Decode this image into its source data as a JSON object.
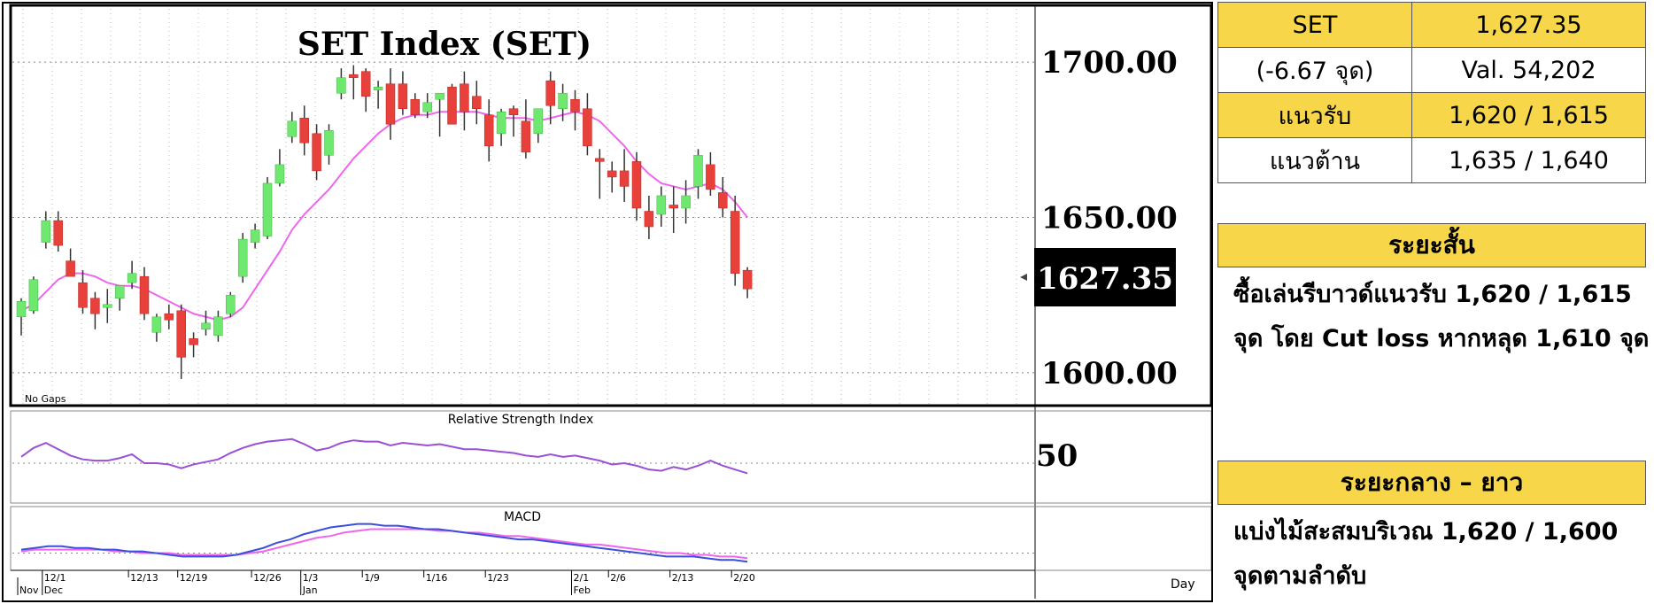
{
  "chart_data": {
    "type": "candlestick",
    "title": "SET Index (SET)",
    "price_axis": {
      "ticks": [
        "1700.00",
        "1650.00",
        "1600.00"
      ],
      "tick_values": [
        1700,
        1650,
        1600
      ],
      "range": [
        1590,
        1716
      ],
      "last_value_label": "1627.35",
      "last_value": 1627.35
    },
    "no_gaps_label": "No Gaps",
    "candles": [
      {
        "o": 1618,
        "h": 1624,
        "l": 1612,
        "c": 1623
      },
      {
        "o": 1620,
        "h": 1631,
        "l": 1619,
        "c": 1630
      },
      {
        "o": 1642,
        "h": 1652,
        "l": 1640,
        "c": 1649
      },
      {
        "o": 1649,
        "h": 1652,
        "l": 1639,
        "c": 1641
      },
      {
        "o": 1636,
        "h": 1640,
        "l": 1632,
        "c": 1631
      },
      {
        "o": 1629,
        "h": 1633,
        "l": 1619,
        "c": 1621
      },
      {
        "o": 1624,
        "h": 1626,
        "l": 1614,
        "c": 1619
      },
      {
        "o": 1621,
        "h": 1627,
        "l": 1616,
        "c": 1622
      },
      {
        "o": 1624,
        "h": 1628,
        "l": 1620,
        "c": 1628
      },
      {
        "o": 1629,
        "h": 1636,
        "l": 1627,
        "c": 1632
      },
      {
        "o": 1631,
        "h": 1634,
        "l": 1617,
        "c": 1619
      },
      {
        "o": 1613,
        "h": 1619,
        "l": 1610,
        "c": 1618
      },
      {
        "o": 1619,
        "h": 1622,
        "l": 1614,
        "c": 1617
      },
      {
        "o": 1620,
        "h": 1622,
        "l": 1598,
        "c": 1605
      },
      {
        "o": 1611,
        "h": 1613,
        "l": 1605,
        "c": 1609
      },
      {
        "o": 1614,
        "h": 1620,
        "l": 1612,
        "c": 1616
      },
      {
        "o": 1612,
        "h": 1620,
        "l": 1610,
        "c": 1618
      },
      {
        "o": 1619,
        "h": 1626,
        "l": 1618,
        "c": 1625
      },
      {
        "o": 1631,
        "h": 1645,
        "l": 1629,
        "c": 1643
      },
      {
        "o": 1642,
        "h": 1648,
        "l": 1640,
        "c": 1646
      },
      {
        "o": 1644,
        "h": 1663,
        "l": 1643,
        "c": 1661
      },
      {
        "o": 1661,
        "h": 1672,
        "l": 1660,
        "c": 1667
      },
      {
        "o": 1676,
        "h": 1684,
        "l": 1674,
        "c": 1681
      },
      {
        "o": 1682,
        "h": 1686,
        "l": 1670,
        "c": 1674
      },
      {
        "o": 1677,
        "h": 1680,
        "l": 1662,
        "c": 1665
      },
      {
        "o": 1670,
        "h": 1680,
        "l": 1667,
        "c": 1678
      },
      {
        "o": 1690,
        "h": 1698,
        "l": 1688,
        "c": 1695
      },
      {
        "o": 1696,
        "h": 1699,
        "l": 1688,
        "c": 1695
      },
      {
        "o": 1697,
        "h": 1698,
        "l": 1684,
        "c": 1689
      },
      {
        "o": 1691,
        "h": 1694,
        "l": 1685,
        "c": 1692
      },
      {
        "o": 1693,
        "h": 1698,
        "l": 1675,
        "c": 1680
      },
      {
        "o": 1693,
        "h": 1697,
        "l": 1683,
        "c": 1685
      },
      {
        "o": 1688,
        "h": 1690,
        "l": 1682,
        "c": 1683
      },
      {
        "o": 1684,
        "h": 1690,
        "l": 1682,
        "c": 1687
      },
      {
        "o": 1688,
        "h": 1690,
        "l": 1676,
        "c": 1690
      },
      {
        "o": 1692,
        "h": 1693,
        "l": 1680,
        "c": 1680
      },
      {
        "o": 1693,
        "h": 1697,
        "l": 1678,
        "c": 1684
      },
      {
        "o": 1689,
        "h": 1694,
        "l": 1680,
        "c": 1685
      },
      {
        "o": 1683,
        "h": 1688,
        "l": 1668,
        "c": 1673
      },
      {
        "o": 1677,
        "h": 1685,
        "l": 1673,
        "c": 1684
      },
      {
        "o": 1685,
        "h": 1686,
        "l": 1676,
        "c": 1683
      },
      {
        "o": 1681,
        "h": 1688,
        "l": 1669,
        "c": 1671
      },
      {
        "o": 1677,
        "h": 1685,
        "l": 1674,
        "c": 1685
      },
      {
        "o": 1694,
        "h": 1697,
        "l": 1680,
        "c": 1686
      },
      {
        "o": 1685,
        "h": 1693,
        "l": 1681,
        "c": 1690
      },
      {
        "o": 1688,
        "h": 1691,
        "l": 1678,
        "c": 1684
      },
      {
        "o": 1685,
        "h": 1690,
        "l": 1670,
        "c": 1673
      },
      {
        "o": 1669,
        "h": 1672,
        "l": 1656,
        "c": 1668
      },
      {
        "o": 1665,
        "h": 1668,
        "l": 1658,
        "c": 1663
      },
      {
        "o": 1665,
        "h": 1672,
        "l": 1655,
        "c": 1660
      },
      {
        "o": 1668,
        "h": 1671,
        "l": 1649,
        "c": 1653
      },
      {
        "o": 1652,
        "h": 1657,
        "l": 1643,
        "c": 1647
      },
      {
        "o": 1651,
        "h": 1660,
        "l": 1647,
        "c": 1657
      },
      {
        "o": 1654,
        "h": 1660,
        "l": 1645,
        "c": 1653
      },
      {
        "o": 1653,
        "h": 1662,
        "l": 1648,
        "c": 1657
      },
      {
        "o": 1660,
        "h": 1672,
        "l": 1656,
        "c": 1670
      },
      {
        "o": 1667,
        "h": 1671,
        "l": 1657,
        "c": 1659
      },
      {
        "o": 1658,
        "h": 1663,
        "l": 1650,
        "c": 1653
      },
      {
        "o": 1652,
        "h": 1657,
        "l": 1628,
        "c": 1632
      },
      {
        "o": 1633,
        "h": 1634,
        "l": 1624,
        "c": 1627
      }
    ],
    "moving_average": [
      1620,
      1622,
      1626,
      1630,
      1632,
      1632,
      1631,
      1629,
      1628,
      1628,
      1627,
      1625,
      1623,
      1621,
      1619,
      1618,
      1617,
      1618,
      1621,
      1627,
      1633,
      1639,
      1646,
      1651,
      1655,
      1659,
      1664,
      1669,
      1673,
      1677,
      1680,
      1682,
      1683,
      1683,
      1684,
      1684,
      1684,
      1684,
      1683,
      1682,
      1682,
      1682,
      1681,
      1682,
      1683,
      1684,
      1683,
      1681,
      1677,
      1673,
      1668,
      1664,
      1661,
      1660,
      1659,
      1660,
      1661,
      1659,
      1655,
      1650
    ],
    "x_axis": {
      "month_labels": [
        {
          "label": "Nov",
          "index": 0
        },
        {
          "label": "Dec",
          "index": 2
        },
        {
          "label": "Jan",
          "index": 23
        },
        {
          "label": "Feb",
          "index": 45
        }
      ],
      "date_labels": [
        {
          "label": "12/1",
          "index": 2
        },
        {
          "label": "12/13",
          "index": 9
        },
        {
          "label": "12/19",
          "index": 13
        },
        {
          "label": "12/26",
          "index": 19
        },
        {
          "label": "1/3",
          "index": 23
        },
        {
          "label": "1/9",
          "index": 28
        },
        {
          "label": "1/16",
          "index": 33
        },
        {
          "label": "1/23",
          "index": 38
        },
        {
          "label": "2/1",
          "index": 45
        },
        {
          "label": "2/6",
          "index": 48
        },
        {
          "label": "2/13",
          "index": 53
        },
        {
          "label": "2/20",
          "index": 58
        }
      ],
      "period_label": "Day"
    },
    "rsi": {
      "title": "Relative Strength Index",
      "tick_label": "50",
      "tick_value": 50,
      "range": [
        20,
        80
      ],
      "values": [
        55,
        62,
        66,
        61,
        56,
        53,
        52,
        52,
        54,
        57,
        50,
        50,
        49,
        46,
        49,
        51,
        53,
        58,
        62,
        65,
        67,
        68,
        69,
        65,
        60,
        62,
        66,
        68,
        67,
        67,
        64,
        66,
        65,
        64,
        65,
        63,
        61,
        61,
        60,
        59,
        58,
        56,
        55,
        57,
        55,
        56,
        54,
        52,
        49,
        50,
        48,
        45,
        44,
        47,
        45,
        48,
        52,
        48,
        45,
        42
      ]
    },
    "macd": {
      "title": "MACD",
      "range": [
        -8,
        22
      ],
      "macd_values": [
        2,
        3,
        4,
        4,
        3,
        3,
        2,
        2,
        1,
        1,
        0,
        -1,
        -2,
        -2,
        -2,
        -2,
        -1,
        1,
        3,
        6,
        8,
        11,
        13,
        15,
        16,
        17,
        17,
        16,
        16,
        15,
        14,
        14,
        13,
        12,
        11,
        10,
        9,
        8,
        8,
        7,
        6,
        5,
        4,
        3,
        2,
        1,
        0,
        -1,
        -2,
        -2,
        -2,
        -3,
        -4,
        -4,
        -5
      ],
      "signal_values": [
        1,
        2,
        2,
        2,
        2,
        2,
        2,
        1,
        1,
        0,
        0,
        0,
        -1,
        -1,
        -1,
        -1,
        -1,
        0,
        1,
        3,
        5,
        7,
        9,
        10,
        12,
        13,
        14,
        14,
        14,
        14,
        14,
        13,
        13,
        12,
        12,
        11,
        10,
        10,
        9,
        8,
        7,
        6,
        5,
        5,
        4,
        3,
        2,
        1,
        0,
        0,
        -1,
        -1,
        -2,
        -2,
        -3
      ]
    },
    "colors": {
      "up": "#6ee86e",
      "down": "#e8413b",
      "ma": "#ee66ee",
      "rsi": "#9a4fd6",
      "macd": "#3c4fdc",
      "signal": "#ee66ee"
    }
  },
  "panel": {
    "rows": [
      {
        "left": "SET",
        "right": "1,627.35"
      },
      {
        "left": "(-6.67 จุด)",
        "right": "Val. 54,202"
      },
      {
        "left": "แนวรับ",
        "right": "1,620 / 1,615"
      },
      {
        "left": "แนวต้าน",
        "right": "1,635 / 1,640"
      }
    ],
    "short_term": {
      "title": "ระยะสั้น",
      "line1": "ซื้อเล่นรีบาวด์แนวรับ 1,620 / 1,615",
      "line2": "จุด โดย Cut loss หากหลุด 1,610 จุด"
    },
    "mid_term": {
      "title": "ระยะกลาง – ยาว",
      "line1": "แบ่งไม้สะสมบริเวณ 1,620 / 1,600",
      "line2": "จุดตามลำดับ"
    }
  }
}
